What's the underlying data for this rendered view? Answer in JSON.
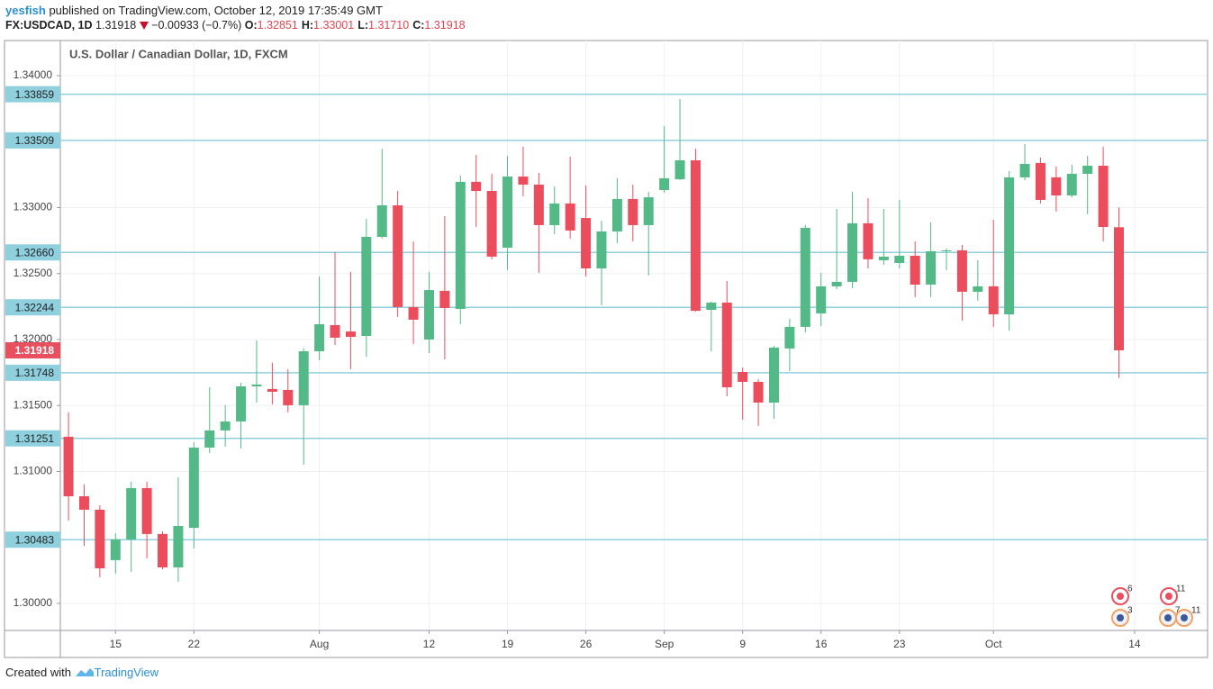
{
  "header": {
    "user": "yesfish",
    "published": "published on TradingView.com, October 12, 2019 17:35:49 GMT",
    "symbol": "FX:USDCAD, 1D",
    "last": "1.31918",
    "change": "−0.00933 (−0.7%)",
    "ohlc": [
      {
        "key": "O:",
        "value": "1.32851"
      },
      {
        "key": "H:",
        "value": "1.33001"
      },
      {
        "key": "L:",
        "value": "1.31710"
      },
      {
        "key": "C:",
        "value": "1.31918"
      }
    ]
  },
  "chart_data": {
    "type": "candlestick",
    "subtitle": "U.S. Dollar / Canadian Dollar, 1D, FXCM",
    "up_color": "#53b987",
    "down_color": "#eb4d5c",
    "open": [
      1.31263,
      1.30812,
      1.3071,
      1.30328,
      1.30485,
      1.30874,
      1.30526,
      1.30273,
      1.30573,
      1.31181,
      1.31311,
      1.31379,
      1.31645,
      1.31625,
      1.31618,
      1.31502,
      1.31911,
      1.32109,
      1.32061,
      1.32027,
      1.32778,
      1.33017,
      1.32246,
      1.32,
      1.32369,
      1.32232,
      1.33195,
      1.33126,
      1.32696,
      1.33235,
      1.33174,
      1.32867,
      1.33031,
      1.32921,
      1.32539,
      1.32819,
      1.33065,
      1.32867,
      1.33133,
      1.33215,
      1.33358,
      1.32225,
      1.3228,
      1.31754,
      1.31679,
      1.31522,
      1.31932,
      1.32096,
      1.32198,
      1.32403,
      1.32437,
      1.32881,
      1.32601,
      1.3258,
      1.32635,
      1.32416,
      1.32669,
      1.32676,
      1.32362,
      1.32403,
      1.32191,
      1.33229,
      1.33338,
      1.33229,
      1.33092,
      1.33256,
      1.33317,
      1.32851
    ],
    "high": [
      1.31447,
      1.30901,
      1.30744,
      1.30532,
      1.30922,
      1.30922,
      1.30546,
      1.30956,
      1.31222,
      1.31638,
      1.31502,
      1.31672,
      1.31993,
      1.31823,
      1.31775,
      1.31932,
      1.32478,
      1.32662,
      1.32512,
      1.32915,
      1.33447,
      1.33126,
      1.32744,
      1.32512,
      1.32935,
      1.33242,
      1.33399,
      1.33256,
      1.33392,
      1.33461,
      1.33263,
      1.3316,
      1.33386,
      1.33167,
      1.32901,
      1.33222,
      1.33174,
      1.33119,
      1.33618,
      1.33823,
      1.33447,
      1.32287,
      1.32444,
      1.31788,
      1.317,
      1.31952,
      1.32157,
      1.32867,
      1.32505,
      1.3299,
      1.33119,
      1.33072,
      1.3299,
      1.33058,
      1.32744,
      1.32887,
      1.32689,
      1.32717,
      1.32601,
      1.32908,
      1.33276,
      1.33481,
      1.33379,
      1.33311,
      1.33324,
      1.33392,
      1.33461,
      1.33001
    ],
    "low": [
      1.30628,
      1.30437,
      1.30198,
      1.30225,
      1.30239,
      1.30341,
      1.30259,
      1.30164,
      1.30416,
      1.3114,
      1.31188,
      1.31174,
      1.31522,
      1.31509,
      1.31447,
      1.31051,
      1.31843,
      1.31959,
      1.31775,
      1.3187,
      1.32765,
      1.32171,
      1.31966,
      1.31898,
      1.3185,
      1.32116,
      1.32853,
      1.32608,
      1.32526,
      1.33085,
      1.32505,
      1.32799,
      1.32765,
      1.32478,
      1.32259,
      1.3273,
      1.32744,
      1.32485,
      1.33113,
      1.33208,
      1.32212,
      1.31911,
      1.3157,
      1.31392,
      1.31345,
      1.31399,
      1.31761,
      1.32055,
      1.32102,
      1.32382,
      1.32389,
      1.32539,
      1.32567,
      1.32539,
      1.32321,
      1.32321,
      1.32526,
      1.32143,
      1.32294,
      1.32096,
      1.32068,
      1.33208,
      1.33031,
      1.32969,
      1.33078,
      1.32949,
      1.32744,
      1.3171
    ],
    "close": [
      1.30812,
      1.3071,
      1.30266,
      1.30485,
      1.30874,
      1.30526,
      1.30273,
      1.30587,
      1.31181,
      1.31311,
      1.31379,
      1.31645,
      1.31659,
      1.31604,
      1.31502,
      1.31911,
      1.32116,
      1.32014,
      1.3202,
      1.32778,
      1.33017,
      1.32246,
      1.3215,
      1.32375,
      1.32239,
      1.33195,
      1.33126,
      1.32628,
      1.33235,
      1.33174,
      1.32867,
      1.33031,
      1.32826,
      1.32539,
      1.32819,
      1.33065,
      1.32867,
      1.33078,
      1.33222,
      1.33358,
      1.32218,
      1.3228,
      1.31638,
      1.31679,
      1.31522,
      1.31939,
      1.32096,
      1.32846,
      1.32403,
      1.32437,
      1.32881,
      1.32608,
      1.32628,
      1.32635,
      1.32416,
      1.32669,
      1.32676,
      1.32362,
      1.32403,
      1.32191,
      1.33229,
      1.33331,
      1.33058,
      1.33092,
      1.33256,
      1.33317,
      1.32853,
      1.31918
    ],
    "xlim": [
      -0.52,
      72.6
    ],
    "xticks": [
      {
        "value": 3,
        "label": "15"
      },
      {
        "value": 8,
        "label": "22"
      },
      {
        "value": 16,
        "label": "Aug"
      },
      {
        "value": 23,
        "label": "12"
      },
      {
        "value": 28,
        "label": "19"
      },
      {
        "value": 33,
        "label": "26"
      },
      {
        "value": 38,
        "label": "Sep"
      },
      {
        "value": 43,
        "label": "9"
      },
      {
        "value": 48,
        "label": "16"
      },
      {
        "value": 53,
        "label": "23"
      },
      {
        "value": 59,
        "label": "Oct"
      },
      {
        "value": 68,
        "label": "14"
      }
    ],
    "ylim": [
      1.29795,
      1.34266
    ],
    "yticks": [
      {
        "value": 1.3,
        "label": "1.30000"
      },
      {
        "value": 1.31,
        "label": "1.31000"
      },
      {
        "value": 1.315,
        "label": "1.31500"
      },
      {
        "value": 1.32,
        "label": "1.32000"
      },
      {
        "value": 1.325,
        "label": "1.32500"
      },
      {
        "value": 1.33,
        "label": "1.33000"
      },
      {
        "value": 1.34,
        "label": "1.34000"
      }
    ],
    "grid": true,
    "hlines": {
      "color": "#8fd0de",
      "levels": [
        {
          "value": 1.33859,
          "label": "1.33859"
        },
        {
          "value": 1.33509,
          "label": "1.33509"
        },
        {
          "value": 1.3266,
          "label": "1.32660"
        },
        {
          "value": 1.32244,
          "label": "1.32244"
        },
        {
          "value": 1.31748,
          "label": "1.31748"
        },
        {
          "value": 1.31251,
          "label": "1.31251"
        },
        {
          "value": 1.30483,
          "label": "1.30483"
        }
      ]
    },
    "last_price": {
      "value": 1.31918,
      "label": "1.31918",
      "color": "#e8505f"
    },
    "events": [
      {
        "label": "6",
        "kind": "ca"
      },
      {
        "label": "11",
        "kind": "ca"
      },
      {
        "label": "3",
        "kind": "us"
      },
      {
        "label": "7",
        "kind": "us"
      },
      {
        "label": "11",
        "kind": "us"
      }
    ]
  },
  "footer": {
    "created": "Created with",
    "brand": "TradingView"
  }
}
